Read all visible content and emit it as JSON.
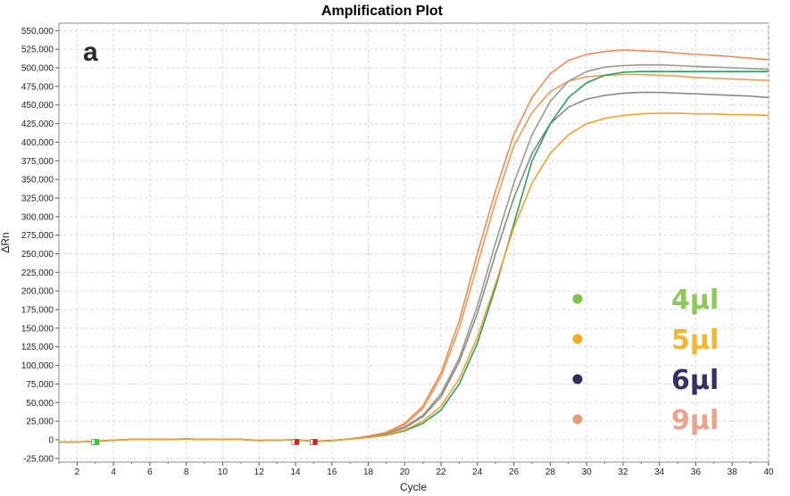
{
  "chart_data": {
    "type": "line",
    "title": "Amplification Plot",
    "panel_label": "a",
    "xlabel": "Cycle",
    "ylabel": "ΔRn",
    "xlim": [
      1,
      40
    ],
    "ylim": [
      -30000,
      560000
    ],
    "x_ticks": [
      "2",
      "4",
      "6",
      "8",
      "10",
      "12",
      "14",
      "16",
      "18",
      "20",
      "22",
      "24",
      "26",
      "28",
      "30",
      "32",
      "34",
      "36",
      "38",
      "40"
    ],
    "y_ticks": [
      "-25,000",
      "0",
      "25,000",
      "50,000",
      "75,000",
      "100,000",
      "125,000",
      "150,000",
      "175,000",
      "200,000",
      "225,000",
      "250,000",
      "275,000",
      "300,000",
      "325,000",
      "350,000",
      "375,000",
      "400,000",
      "425,000",
      "450,000",
      "475,000",
      "500,000",
      "525,000",
      "550,000"
    ],
    "grid": true,
    "legend": [
      {
        "label": "4µl",
        "color": "#8dc85a",
        "dot_color": "#86c34d"
      },
      {
        "label": "5µl",
        "color": "#f2b632",
        "dot_color": "#f0ad22"
      },
      {
        "label": "6µl",
        "color": "#3a2f63",
        "dot_color": "#352c5e"
      },
      {
        "label": "9µl",
        "color": "#eba389",
        "dot_color": "#e8997e"
      }
    ],
    "markers": [
      {
        "cycle": 3,
        "color": "#2fd02f"
      },
      {
        "cycle": 14,
        "color": "#d62020"
      },
      {
        "cycle": 15,
        "color": "#d62020"
      }
    ],
    "series": [
      {
        "color": "#f08a56",
        "values": [
          [
            1,
            -3000
          ],
          [
            2,
            -3000
          ],
          [
            3,
            -2000
          ],
          [
            4,
            -500
          ],
          [
            5,
            500
          ],
          [
            6,
            500
          ],
          [
            7,
            500
          ],
          [
            8,
            1000
          ],
          [
            9,
            500
          ],
          [
            10,
            500
          ],
          [
            11,
            500
          ],
          [
            12,
            -1000
          ],
          [
            13,
            -500
          ],
          [
            14,
            0
          ],
          [
            15,
            -2000
          ],
          [
            16,
            -1000
          ],
          [
            17,
            1000
          ],
          [
            18,
            5000
          ],
          [
            19,
            10000
          ],
          [
            20,
            22000
          ],
          [
            21,
            45000
          ],
          [
            22,
            90000
          ],
          [
            23,
            160000
          ],
          [
            24,
            250000
          ],
          [
            25,
            335000
          ],
          [
            26,
            410000
          ],
          [
            27,
            460000
          ],
          [
            28,
            492000
          ],
          [
            29,
            510000
          ],
          [
            30,
            518000
          ],
          [
            31,
            522000
          ],
          [
            32,
            524000
          ],
          [
            33,
            523000
          ],
          [
            34,
            522000
          ],
          [
            35,
            520000
          ],
          [
            36,
            518000
          ],
          [
            37,
            517000
          ],
          [
            38,
            515000
          ],
          [
            39,
            513000
          ],
          [
            40,
            511000
          ]
        ]
      },
      {
        "color": "#f09a56",
        "values": [
          [
            1,
            -3000
          ],
          [
            2,
            -3000
          ],
          [
            3,
            -2000
          ],
          [
            4,
            -500
          ],
          [
            5,
            500
          ],
          [
            6,
            500
          ],
          [
            7,
            500
          ],
          [
            8,
            1000
          ],
          [
            9,
            500
          ],
          [
            10,
            500
          ],
          [
            11,
            500
          ],
          [
            12,
            -1000
          ],
          [
            13,
            -500
          ],
          [
            14,
            0
          ],
          [
            15,
            -2000
          ],
          [
            16,
            -1000
          ],
          [
            17,
            1000
          ],
          [
            18,
            4000
          ],
          [
            19,
            9000
          ],
          [
            20,
            20000
          ],
          [
            21,
            42000
          ],
          [
            22,
            85000
          ],
          [
            23,
            150000
          ],
          [
            24,
            235000
          ],
          [
            25,
            320000
          ],
          [
            26,
            395000
          ],
          [
            27,
            440000
          ],
          [
            28,
            468000
          ],
          [
            29,
            482000
          ],
          [
            30,
            488000
          ],
          [
            31,
            490000
          ],
          [
            32,
            491000
          ],
          [
            33,
            491000
          ],
          [
            34,
            490000
          ],
          [
            35,
            489000
          ],
          [
            36,
            487000
          ],
          [
            37,
            486000
          ],
          [
            38,
            485000
          ],
          [
            39,
            484000
          ],
          [
            40,
            483000
          ]
        ]
      },
      {
        "color": "#9a9a90",
        "values": [
          [
            1,
            -3000
          ],
          [
            2,
            -3000
          ],
          [
            3,
            -2000
          ],
          [
            4,
            -500
          ],
          [
            5,
            500
          ],
          [
            6,
            500
          ],
          [
            7,
            500
          ],
          [
            8,
            1000
          ],
          [
            9,
            500
          ],
          [
            10,
            500
          ],
          [
            11,
            500
          ],
          [
            12,
            -1000
          ],
          [
            13,
            -500
          ],
          [
            14,
            0
          ],
          [
            15,
            -2000
          ],
          [
            16,
            -1000
          ],
          [
            17,
            1000
          ],
          [
            18,
            3500
          ],
          [
            19,
            8000
          ],
          [
            20,
            17000
          ],
          [
            21,
            33000
          ],
          [
            22,
            62000
          ],
          [
            23,
            110000
          ],
          [
            24,
            180000
          ],
          [
            25,
            265000
          ],
          [
            26,
            345000
          ],
          [
            27,
            410000
          ],
          [
            28,
            455000
          ],
          [
            29,
            482000
          ],
          [
            30,
            495000
          ],
          [
            31,
            501000
          ],
          [
            32,
            503000
          ],
          [
            33,
            504000
          ],
          [
            34,
            504000
          ],
          [
            35,
            503000
          ],
          [
            36,
            502000
          ],
          [
            37,
            501000
          ],
          [
            38,
            500000
          ],
          [
            39,
            499000
          ],
          [
            40,
            498000
          ]
        ]
      },
      {
        "color": "#8a8a82",
        "values": [
          [
            1,
            -3000
          ],
          [
            2,
            -3000
          ],
          [
            3,
            -2000
          ],
          [
            4,
            -500
          ],
          [
            5,
            500
          ],
          [
            6,
            500
          ],
          [
            7,
            500
          ],
          [
            8,
            1000
          ],
          [
            9,
            500
          ],
          [
            10,
            500
          ],
          [
            11,
            500
          ],
          [
            12,
            -1000
          ],
          [
            13,
            -500
          ],
          [
            14,
            0
          ],
          [
            15,
            -2000
          ],
          [
            16,
            -1000
          ],
          [
            17,
            1000
          ],
          [
            18,
            3500
          ],
          [
            19,
            8000
          ],
          [
            20,
            16000
          ],
          [
            21,
            31000
          ],
          [
            22,
            58000
          ],
          [
            23,
            105000
          ],
          [
            24,
            170000
          ],
          [
            25,
            250000
          ],
          [
            26,
            325000
          ],
          [
            27,
            385000
          ],
          [
            28,
            425000
          ],
          [
            29,
            447000
          ],
          [
            30,
            458000
          ],
          [
            31,
            463000
          ],
          [
            32,
            466000
          ],
          [
            33,
            467000
          ],
          [
            34,
            467000
          ],
          [
            35,
            466000
          ],
          [
            36,
            465000
          ],
          [
            37,
            464000
          ],
          [
            38,
            463000
          ],
          [
            39,
            462000
          ],
          [
            40,
            460000
          ]
        ]
      },
      {
        "color": "#2aa05a",
        "values": [
          [
            1,
            -3000
          ],
          [
            2,
            -3000
          ],
          [
            3,
            -2000
          ],
          [
            4,
            -500
          ],
          [
            5,
            500
          ],
          [
            6,
            500
          ],
          [
            7,
            500
          ],
          [
            8,
            1000
          ],
          [
            9,
            500
          ],
          [
            10,
            500
          ],
          [
            11,
            500
          ],
          [
            12,
            -1000
          ],
          [
            13,
            -500
          ],
          [
            14,
            0
          ],
          [
            15,
            -2000
          ],
          [
            16,
            -1000
          ],
          [
            17,
            1000
          ],
          [
            18,
            3000
          ],
          [
            19,
            6000
          ],
          [
            20,
            12000
          ],
          [
            21,
            22000
          ],
          [
            22,
            40000
          ],
          [
            23,
            75000
          ],
          [
            24,
            130000
          ],
          [
            25,
            205000
          ],
          [
            26,
            290000
          ],
          [
            27,
            375000
          ],
          [
            28,
            425000
          ],
          [
            29,
            460000
          ],
          [
            30,
            480000
          ],
          [
            31,
            490000
          ],
          [
            32,
            494000
          ],
          [
            33,
            495000
          ],
          [
            34,
            495000
          ],
          [
            35,
            495000
          ],
          [
            36,
            495000
          ],
          [
            37,
            495000
          ],
          [
            38,
            495000
          ],
          [
            39,
            495000
          ],
          [
            40,
            495000
          ]
        ]
      },
      {
        "color": "#f5a030",
        "values": [
          [
            1,
            -3000
          ],
          [
            2,
            -3000
          ],
          [
            3,
            -2000
          ],
          [
            4,
            -500
          ],
          [
            5,
            500
          ],
          [
            6,
            500
          ],
          [
            7,
            500
          ],
          [
            8,
            1000
          ],
          [
            9,
            500
          ],
          [
            10,
            500
          ],
          [
            11,
            500
          ],
          [
            12,
            -1000
          ],
          [
            13,
            -500
          ],
          [
            14,
            0
          ],
          [
            15,
            -2000
          ],
          [
            16,
            -1000
          ],
          [
            17,
            1000
          ],
          [
            18,
            3000
          ],
          [
            19,
            6500
          ],
          [
            20,
            13000
          ],
          [
            21,
            25000
          ],
          [
            22,
            45000
          ],
          [
            23,
            82000
          ],
          [
            24,
            138000
          ],
          [
            25,
            210000
          ],
          [
            26,
            285000
          ],
          [
            27,
            345000
          ],
          [
            28,
            385000
          ],
          [
            29,
            410000
          ],
          [
            30,
            425000
          ],
          [
            31,
            432000
          ],
          [
            32,
            436000
          ],
          [
            33,
            438000
          ],
          [
            34,
            439000
          ],
          [
            35,
            439000
          ],
          [
            36,
            438000
          ],
          [
            37,
            438000
          ],
          [
            38,
            437000
          ],
          [
            39,
            437000
          ],
          [
            40,
            436000
          ]
        ]
      }
    ]
  }
}
